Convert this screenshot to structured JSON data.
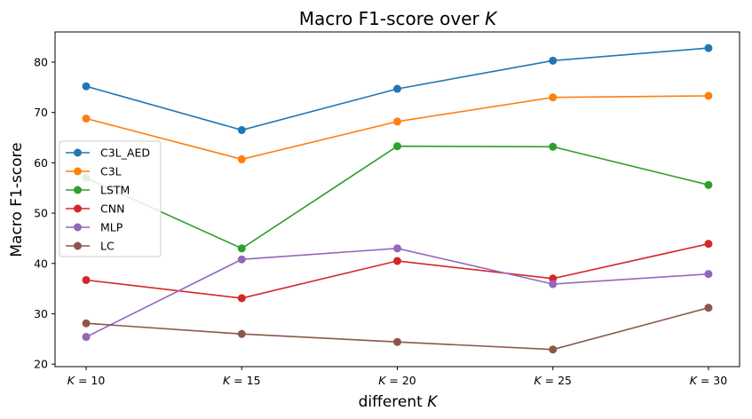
{
  "chart_data": {
    "type": "line",
    "title": "Macro F1-score over K",
    "title_prefix": "Macro F1-score over ",
    "title_var": "K",
    "xlabel_prefix": "different ",
    "xlabel_var": "K",
    "ylabel": "Macro F1-score",
    "categories": [
      "K = 10",
      "K = 15",
      "K = 20",
      "K = 25",
      "K = 30"
    ],
    "x": [
      10,
      15,
      20,
      25,
      30
    ],
    "tick_var": "K",
    "tick_values": [
      "10",
      "15",
      "20",
      "25",
      "30"
    ],
    "ylim": [
      19.5,
      86
    ],
    "yticks": [
      20,
      30,
      40,
      50,
      60,
      70,
      80
    ],
    "grid": false,
    "legend_placement": "center-left",
    "series": [
      {
        "name": "C3L_AED",
        "color": "#1f77b4",
        "values": [
          75.2,
          66.5,
          74.7,
          80.3,
          82.8
        ]
      },
      {
        "name": "C3L",
        "color": "#ff7f0e",
        "values": [
          68.8,
          60.7,
          68.2,
          73.0,
          73.3
        ]
      },
      {
        "name": "LSTM",
        "color": "#2ca02c",
        "values": [
          57.0,
          43.0,
          63.3,
          63.2,
          55.6
        ]
      },
      {
        "name": "CNN",
        "color": "#d62728",
        "values": [
          36.7,
          33.1,
          40.5,
          37.0,
          43.9
        ]
      },
      {
        "name": "MLP",
        "color": "#9467bd",
        "values": [
          25.4,
          40.8,
          43.0,
          35.9,
          37.9
        ]
      },
      {
        "name": "LC",
        "color": "#8c564b",
        "values": [
          28.1,
          26.0,
          24.4,
          22.9,
          31.2
        ]
      }
    ]
  }
}
